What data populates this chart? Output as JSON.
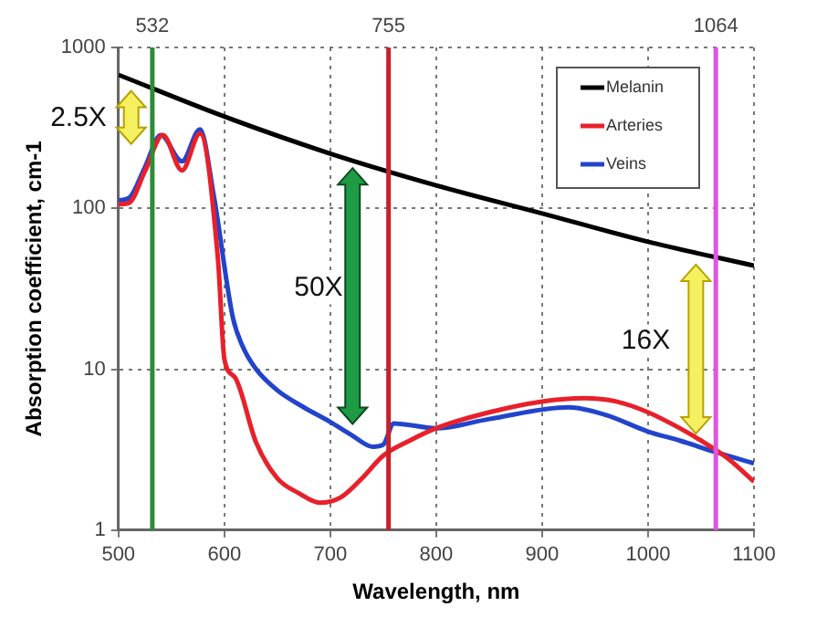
{
  "chart_data": {
    "type": "line",
    "xlabel": "Wavelength, nm",
    "ylabel": "Absorption coefficient, cm-1",
    "xlim": [
      500,
      1100
    ],
    "xticks": [
      500,
      600,
      700,
      800,
      900,
      1000,
      1100
    ],
    "ylim": [
      1,
      1000
    ],
    "yticks": [
      1,
      10,
      100,
      1000
    ],
    "log": "y",
    "grid": true,
    "legend": "top right",
    "marker": "none",
    "line_style": "solid",
    "series": [
      {
        "name": "Melanin",
        "color": "#000000",
        "x": [
          500,
          600,
          700,
          800,
          900,
          1000,
          1100
        ],
        "values": [
          676,
          372,
          219,
          139,
          93,
          62,
          44
        ]
      },
      {
        "name": "Arteries",
        "color": "#e8202a",
        "x": [
          500,
          510,
          525,
          542,
          560,
          577,
          594,
          600,
          610,
          630,
          650,
          670,
          690,
          710,
          730,
          750,
          775,
          800,
          850,
          900,
          940,
          970,
          1000,
          1030,
          1050,
          1075,
          1100
        ],
        "values": [
          106,
          108,
          170,
          285,
          172,
          292,
          48,
          11.6,
          8.9,
          3.5,
          2.1,
          1.7,
          1.48,
          1.6,
          2.1,
          2.9,
          3.6,
          4.3,
          5.4,
          6.3,
          6.6,
          6.3,
          5.4,
          4.3,
          3.6,
          2.8,
          2.0
        ]
      },
      {
        "name": "Veins",
        "color": "#2244cc",
        "x": [
          500,
          510,
          525,
          540,
          560,
          577,
          590,
          608,
          617,
          630,
          650,
          675,
          700,
          720,
          740,
          750,
          760,
          800,
          850,
          925,
          960,
          1000,
          1030,
          1064,
          1100
        ],
        "values": [
          112,
          116,
          180,
          285,
          196,
          310,
          120,
          21,
          14,
          10,
          7.4,
          5.8,
          4.7,
          3.9,
          3.3,
          3.4,
          4.6,
          4.3,
          4.9,
          5.8,
          5.2,
          4.1,
          3.6,
          3.05,
          2.6
        ]
      }
    ],
    "ref_lines": [
      {
        "axis": "x",
        "value": 532,
        "label": "532",
        "color": "#2e8b3a"
      },
      {
        "axis": "x",
        "value": 755,
        "label": "755",
        "color": "#c8202a"
      },
      {
        "axis": "x",
        "value": 1064,
        "label": "1064",
        "color": "#e055e0"
      }
    ],
    "annotations": [
      {
        "text": "2.5X",
        "x": 532,
        "y": 360
      },
      {
        "text": "50X",
        "x": 755,
        "y": 32
      },
      {
        "text": "16X",
        "x": 1064,
        "y": 15
      }
    ]
  }
}
